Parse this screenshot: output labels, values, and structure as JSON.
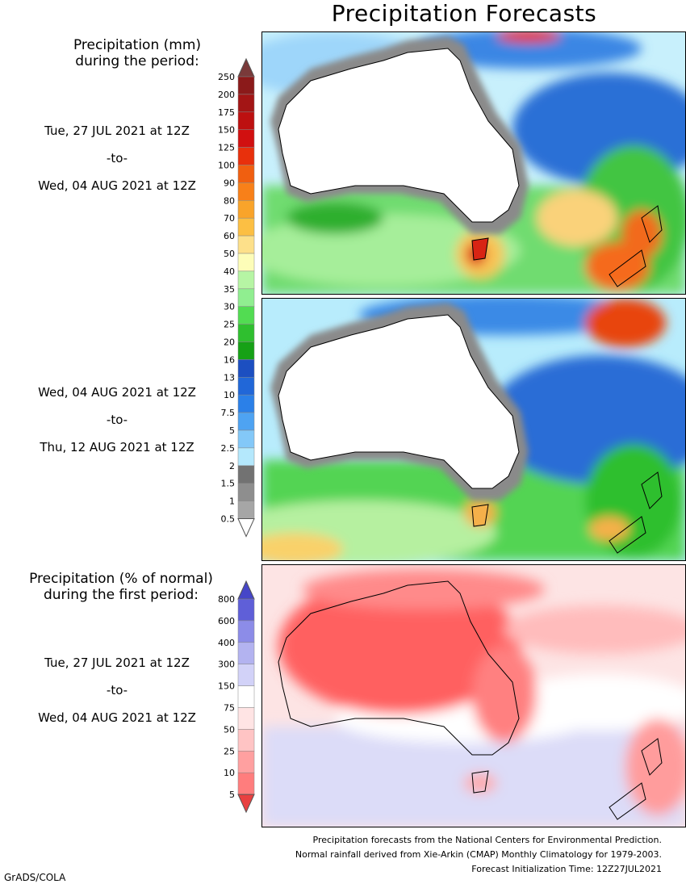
{
  "title": "Precipitation Forecasts",
  "legend_mm": {
    "header_line1": "Precipitation (mm)",
    "header_line2": "during the period:",
    "levels": [
      "250",
      "200",
      "175",
      "150",
      "125",
      "100",
      "90",
      "80",
      "70",
      "60",
      "50",
      "40",
      "35",
      "30",
      "25",
      "20",
      "16",
      "13",
      "10",
      "7.5",
      "5",
      "2.5",
      "2",
      "1.5",
      "1",
      "0.5"
    ],
    "colors": [
      "#8b1a1a",
      "#a31515",
      "#bd1010",
      "#d11010",
      "#e8300c",
      "#f05f10",
      "#f88019",
      "#f9a42a",
      "#fcbf43",
      "#fde08a",
      "#fdfdb8",
      "#b6f5a4",
      "#90ee90",
      "#52dc52",
      "#2fbf2f",
      "#16a116",
      "#1c4fc1",
      "#2167d8",
      "#2b80e8",
      "#4ea3f2",
      "#83c8f8",
      "#b4e8fc",
      "#727272",
      "#8e8e8e",
      "#a6a6a6",
      "#bebebe"
    ],
    "top_color": "#7a3a3a",
    "bottom_color": "#ffffff"
  },
  "legend_pct": {
    "header_line1": "Precipitation (% of normal)",
    "header_line2": "during the first period:",
    "levels": [
      "800",
      "600",
      "400",
      "300",
      "150",
      "75",
      "50",
      "25",
      "10",
      "5"
    ],
    "colors": [
      "#5f5fd8",
      "#8c8ce8",
      "#b3b3f0",
      "#d2d2f8",
      "#ffffff",
      "#ffe4e4",
      "#ffc4c4",
      "#ffa0a0",
      "#ff7d7d"
    ],
    "top_color": "#4646c8",
    "bottom_color": "#e84040"
  },
  "periods": [
    {
      "start": "Tue, 27 JUL 2021 at 12Z",
      "sep": "-to-",
      "end": "Wed, 04 AUG 2021 at 12Z"
    },
    {
      "start": "Wed, 04 AUG 2021 at 12Z",
      "sep": "-to-",
      "end": "Thu, 12 AUG 2021 at 12Z"
    },
    {
      "start": "Tue, 27 JUL 2021 at 12Z",
      "sep": "-to-",
      "end": "Wed, 04 AUG 2021 at 12Z"
    }
  ],
  "maps": [
    {
      "name": "precip-map-period-1",
      "region": "Australia and New Zealand",
      "variable": "precipitation (mm)"
    },
    {
      "name": "precip-map-period-2",
      "region": "Australia and New Zealand",
      "variable": "precipitation (mm)"
    },
    {
      "name": "percent-normal-map",
      "region": "Australia and New Zealand",
      "variable": "precipitation (% of normal)"
    }
  ],
  "footer": {
    "line1": "Precipitation forecasts from the National Centers for Environmental Prediction.",
    "line2": "Normal rainfall derived from Xie-Arkin (CMAP) Monthly Climatology for 1979-2003.",
    "line3": "Forecast Initialization Time: 12Z27JUL2021"
  },
  "credit": "GrADS/COLA"
}
